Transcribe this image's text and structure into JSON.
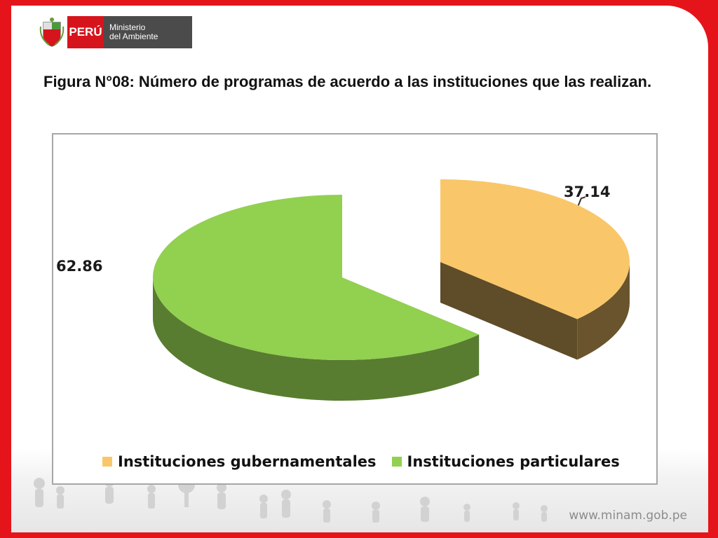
{
  "header": {
    "country_label": "PERÚ",
    "ministry_line1": "Ministerio",
    "ministry_line2": "del Ambiente"
  },
  "figure": {
    "title": "Figura N°08: Número de programas de acuerdo a las instituciones que las realizan."
  },
  "chart_data": {
    "type": "pie",
    "style": "3d-exploded",
    "title": "",
    "categories": [
      "Instituciones gubernamentales",
      "Instituciones particulares"
    ],
    "values": [
      37.14,
      62.86
    ],
    "value_labels": [
      "37.14",
      "62.86"
    ],
    "colors": [
      "#f9c76a",
      "#92d050"
    ],
    "legend_position": "bottom"
  },
  "footer": {
    "website": "www.minam.gob.pe"
  }
}
